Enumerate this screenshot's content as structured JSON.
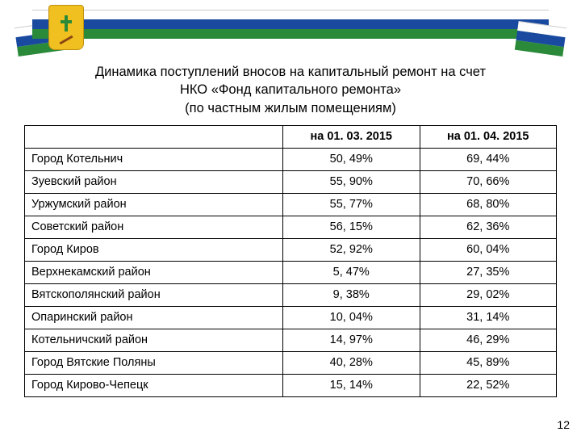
{
  "title": {
    "line1": "Динамика поступлений вносов на капитальный ремонт на счет",
    "line2": "НКО «Фонд капитального ремонта»",
    "line3": "(по частным жилым помещениям)"
  },
  "table": {
    "columns": [
      "",
      "на 01. 03. 2015",
      "на 01. 04. 2015"
    ],
    "rows": [
      [
        "Город Котельнич",
        "50, 49%",
        "69, 44%"
      ],
      [
        "Зуевский район",
        "55, 90%",
        "70, 66%"
      ],
      [
        "Уржумский район",
        "55, 77%",
        "68, 80%"
      ],
      [
        "Советский район",
        "56, 15%",
        "62, 36%"
      ],
      [
        "Город Киров",
        "52, 92%",
        "60, 04%"
      ],
      [
        "Верхнекамский район",
        "5, 47%",
        "27, 35%"
      ],
      [
        "Вятскополянский район",
        "9, 38%",
        "29, 02%"
      ],
      [
        "Опаринский район",
        "10, 04%",
        "31, 14%"
      ],
      [
        "Котельничский район",
        "14, 97%",
        "46, 29%"
      ],
      [
        "Город Вятские Поляны",
        "40, 28%",
        "45, 89%"
      ],
      [
        "Город Кирово-Чепецк",
        "15, 14%",
        "22, 52%"
      ]
    ],
    "col_widths": [
      "320px",
      "170px",
      "170px"
    ],
    "border_color": "#000000",
    "header_bg": "#ffffff",
    "font_size": 14.5
  },
  "page_number": "12",
  "colors": {
    "stripe_blue": "#1a4aa0",
    "stripe_green": "#2a8a3a",
    "emblem_bg": "#f0c020",
    "text": "#000000",
    "background": "#ffffff"
  }
}
